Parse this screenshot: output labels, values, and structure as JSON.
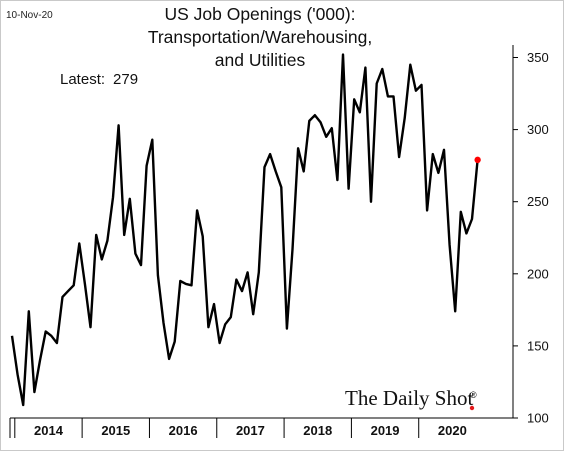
{
  "date": "10-Nov-20",
  "title_line1": "US Job Openings ('000): Transportation/Warehousing,",
  "title_line2": "and Utilities",
  "annotation": {
    "label": "Latest:",
    "value": "279"
  },
  "brand": {
    "text": "The Daily Shot",
    "mark": "®",
    "dot_color": "#e41a1c"
  },
  "chart_data": {
    "type": "line",
    "title": "US Job Openings ('000): Transportation/Warehousing, and Utilities",
    "xlabel": "",
    "ylabel": "",
    "ylim": [
      100,
      360
    ],
    "yticks": [
      100,
      150,
      200,
      250,
      300,
      350
    ],
    "year_labels": [
      "2014",
      "2015",
      "2016",
      "2017",
      "2018",
      "2019",
      "2020"
    ],
    "x_start": "2013-12",
    "x_end": "2020-09",
    "grid": false,
    "line_color": "#000000",
    "marker_color": "#ff0000",
    "series": [
      {
        "values": [
          157,
          130,
          109,
          174,
          118,
          140,
          160,
          157,
          152,
          184,
          188,
          192,
          221,
          193,
          163,
          227,
          210,
          223,
          253,
          303,
          227,
          252,
          214,
          206,
          275,
          293,
          199,
          166,
          141,
          153,
          195,
          193,
          192,
          244,
          226,
          163,
          179,
          152,
          165,
          170,
          196,
          188,
          201,
          172,
          201,
          274,
          283,
          271,
          260,
          162,
          217,
          287,
          271,
          306,
          310,
          305,
          295,
          301,
          265,
          352,
          259,
          321,
          312,
          343,
          250,
          332,
          342,
          323,
          323,
          281,
          308,
          345,
          327,
          331,
          244,
          283,
          270,
          286,
          220,
          174,
          243,
          228,
          238,
          279
        ]
      }
    ],
    "latest": 279
  }
}
